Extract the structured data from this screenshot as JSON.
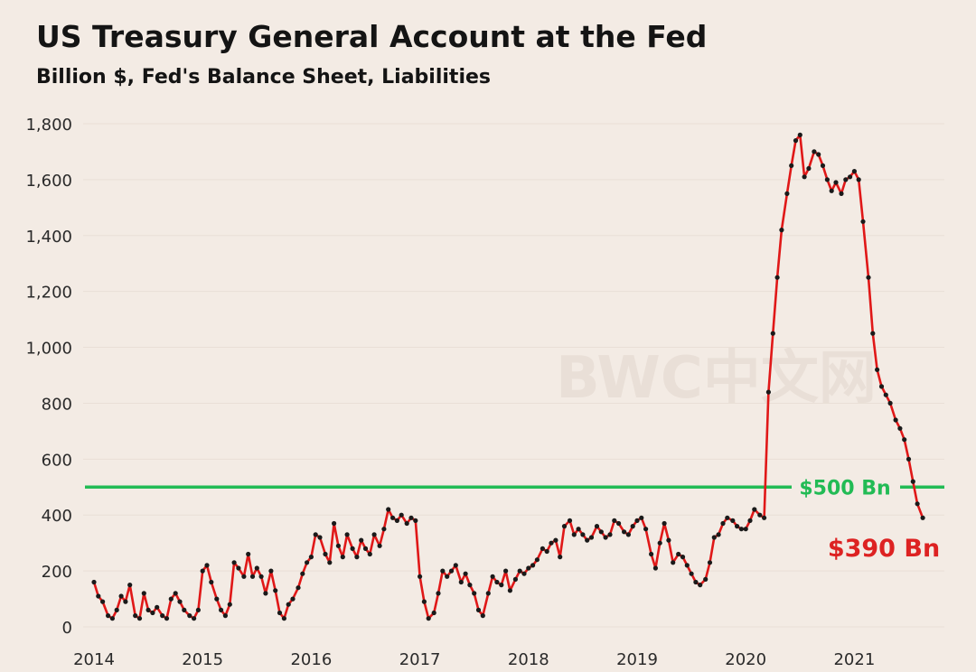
{
  "chart_data": {
    "type": "line",
    "title": "US Treasury General Account at the Fed",
    "subtitle": "Billion $, Fed's Balance Sheet, Liabilities",
    "xlabel": "",
    "ylabel": "",
    "xlim": [
      2014.0,
      2021.8
    ],
    "ylim": [
      0,
      1800
    ],
    "y_ticks": [
      0,
      200,
      400,
      600,
      800,
      1000,
      1200,
      1400,
      1600,
      1800
    ],
    "y_tick_labels": [
      "0",
      "200",
      "400",
      "600",
      "800",
      "1,000",
      "1,200",
      "1,400",
      "1,600",
      "1,800"
    ],
    "x_ticks": [
      2014,
      2015,
      2016,
      2017,
      2018,
      2019,
      2020,
      2021
    ],
    "x_tick_labels": [
      "2014",
      "2015",
      "2016",
      "2017",
      "2018",
      "2019",
      "2020",
      "2021"
    ],
    "grid": "horizontal",
    "series": [
      {
        "color": "#e01818",
        "marker_color": "#1a1a1a",
        "x": [
          2014.0,
          2014.04,
          2014.08,
          2014.13,
          2014.17,
          2014.21,
          2014.25,
          2014.29,
          2014.33,
          2014.38,
          2014.42,
          2014.46,
          2014.5,
          2014.54,
          2014.58,
          2014.63,
          2014.67,
          2014.71,
          2014.75,
          2014.79,
          2014.83,
          2014.88,
          2014.92,
          2014.96,
          2015.0,
          2015.04,
          2015.08,
          2015.13,
          2015.17,
          2015.21,
          2015.25,
          2015.29,
          2015.33,
          2015.38,
          2015.42,
          2015.46,
          2015.5,
          2015.54,
          2015.58,
          2015.63,
          2015.67,
          2015.71,
          2015.75,
          2015.79,
          2015.83,
          2015.88,
          2015.92,
          2015.96,
          2016.0,
          2016.04,
          2016.08,
          2016.13,
          2016.17,
          2016.21,
          2016.25,
          2016.29,
          2016.33,
          2016.38,
          2016.42,
          2016.46,
          2016.5,
          2016.54,
          2016.58,
          2016.63,
          2016.67,
          2016.71,
          2016.75,
          2016.79,
          2016.83,
          2016.88,
          2016.92,
          2016.96,
          2017.0,
          2017.04,
          2017.08,
          2017.13,
          2017.17,
          2017.21,
          2017.25,
          2017.29,
          2017.33,
          2017.38,
          2017.42,
          2017.46,
          2017.5,
          2017.54,
          2017.58,
          2017.63,
          2017.67,
          2017.71,
          2017.75,
          2017.79,
          2017.83,
          2017.88,
          2017.92,
          2017.96,
          2018.0,
          2018.04,
          2018.08,
          2018.13,
          2018.17,
          2018.21,
          2018.25,
          2018.29,
          2018.33,
          2018.38,
          2018.42,
          2018.46,
          2018.5,
          2018.54,
          2018.58,
          2018.63,
          2018.67,
          2018.71,
          2018.75,
          2018.79,
          2018.83,
          2018.88,
          2018.92,
          2018.96,
          2019.0,
          2019.04,
          2019.08,
          2019.13,
          2019.17,
          2019.21,
          2019.25,
          2019.29,
          2019.33,
          2019.38,
          2019.42,
          2019.46,
          2019.5,
          2019.54,
          2019.58,
          2019.63,
          2019.67,
          2019.71,
          2019.75,
          2019.79,
          2019.83,
          2019.88,
          2019.92,
          2019.96,
          2020.0,
          2020.04,
          2020.08,
          2020.13,
          2020.17,
          2020.21,
          2020.25,
          2020.29,
          2020.33,
          2020.38,
          2020.42,
          2020.46,
          2020.5,
          2020.54,
          2020.58,
          2020.63,
          2020.67,
          2020.71,
          2020.75,
          2020.79,
          2020.83,
          2020.88,
          2020.92,
          2020.96,
          2021.0,
          2021.04,
          2021.08,
          2021.13,
          2021.17,
          2021.21,
          2021.25,
          2021.29,
          2021.33,
          2021.38,
          2021.42,
          2021.46,
          2021.5,
          2021.54,
          2021.58,
          2021.63
        ],
        "y": [
          160,
          110,
          90,
          40,
          30,
          60,
          110,
          90,
          150,
          40,
          30,
          120,
          60,
          50,
          70,
          40,
          30,
          100,
          120,
          90,
          60,
          40,
          30,
          60,
          200,
          220,
          160,
          100,
          60,
          40,
          80,
          230,
          210,
          180,
          260,
          180,
          210,
          180,
          120,
          200,
          130,
          50,
          30,
          80,
          100,
          140,
          190,
          230,
          250,
          330,
          320,
          260,
          230,
          370,
          290,
          250,
          330,
          280,
          250,
          310,
          280,
          260,
          330,
          290,
          350,
          420,
          390,
          380,
          400,
          370,
          390,
          380,
          180,
          90,
          30,
          50,
          120,
          200,
          180,
          200,
          220,
          160,
          190,
          150,
          120,
          60,
          40,
          120,
          180,
          160,
          150,
          200,
          130,
          170,
          200,
          190,
          210,
          220,
          240,
          280,
          270,
          300,
          310,
          250,
          360,
          380,
          330,
          350,
          330,
          310,
          320,
          360,
          340,
          320,
          330,
          380,
          370,
          340,
          330,
          360,
          380,
          390,
          350,
          260,
          210,
          300,
          370,
          310,
          230,
          260,
          250,
          220,
          190,
          160,
          150,
          170,
          230,
          320,
          330,
          370,
          390,
          380,
          360,
          350,
          350,
          380,
          420,
          400,
          390,
          840,
          1050,
          1250,
          1420,
          1550,
          1650,
          1740,
          1760,
          1610,
          1640,
          1700,
          1690,
          1650,
          1600,
          1560,
          1590,
          1550,
          1600,
          1610,
          1630,
          1600,
          1450,
          1250,
          1050,
          920,
          860,
          830,
          800,
          740,
          710,
          670,
          600,
          520,
          440,
          390
        ]
      }
    ],
    "reference_lines": [
      {
        "y": 500,
        "label": "$500 Bn",
        "color": "#22bb55"
      }
    ],
    "annotations": [
      {
        "text": "$390 Bn",
        "x": 2021.63,
        "y": 390,
        "color": "#dd2222"
      }
    ],
    "watermark": "BWC中文网"
  }
}
